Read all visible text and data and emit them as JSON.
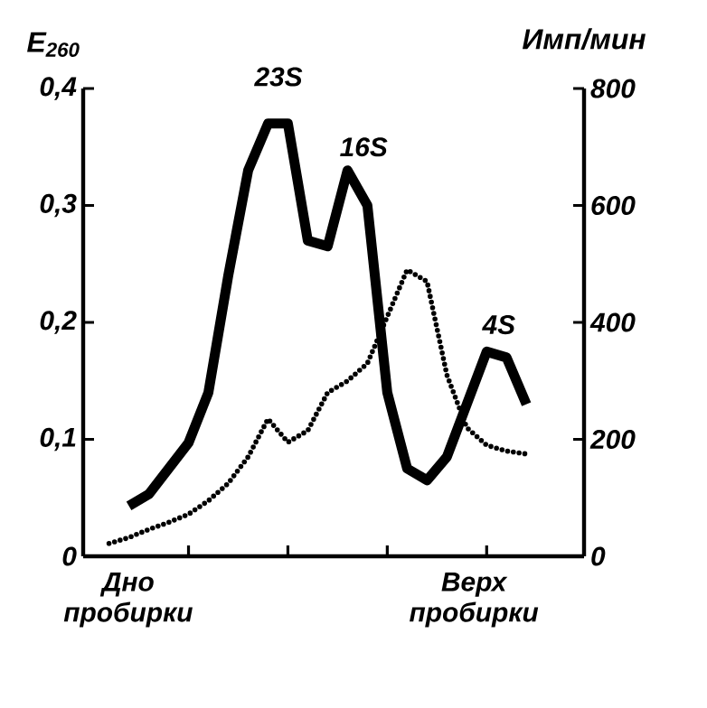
{
  "chart_data": {
    "type": "line",
    "ylabel": "E$_{260}$",
    "y2label": "Имп/мин",
    "categories": [
      null,
      null,
      null,
      null,
      null,
      null,
      null,
      null,
      null,
      null,
      null,
      null,
      null,
      null,
      null,
      null,
      null,
      null,
      null,
      null,
      null,
      null,
      null,
      null,
      null
    ],
    "ylim": [
      0,
      0.4
    ],
    "yticks": [
      0,
      {
        "value": 0.1,
        "label": "0,1"
      },
      {
        "value": 0.2,
        "label": "0,2"
      },
      {
        "value": 0.3,
        "label": "0,3"
      },
      {
        "value": 0.4,
        "label": "0,4"
      }
    ],
    "y2lim": [
      0,
      800
    ],
    "y2ticks": [
      0,
      200,
      400,
      600,
      800
    ],
    "series": [
      {
        "color": "#000000",
        "line_style": "solid",
        "values": [
          null,
          null,
          0.043,
          0.053,
          0.075,
          0.097,
          0.14,
          0.24,
          0.33,
          0.37,
          0.37,
          0.27,
          0.265,
          0.33,
          0.3,
          0.14,
          0.075,
          0.065,
          0.085,
          0.13,
          0.175,
          0.17,
          0.13,
          null,
          null
        ]
      },
      {
        "color": "#000000",
        "line_style": "dotted",
        "axis": "y2",
        "values": [
          null,
          22,
          32,
          46,
          58,
          72,
          95,
          125,
          170,
          235,
          195,
          215,
          280,
          300,
          330,
          410,
          490,
          470,
          310,
          220,
          190,
          180,
          175,
          null,
          null
        ]
      }
    ],
    "annotations": [
      "23S",
      "16S",
      "4S",
      "Дно пробирки",
      "Верх пробирки"
    ]
  }
}
